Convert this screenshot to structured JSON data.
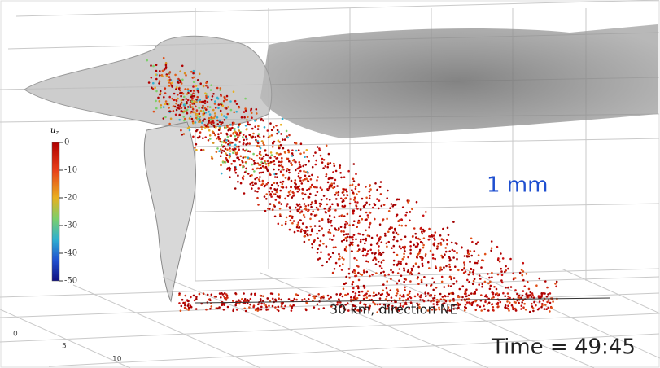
{
  "colorbar": {
    "label": "u",
    "label_subscript": "z",
    "range": [
      -50,
      0
    ],
    "ticks": [
      0,
      -10,
      -20,
      -30,
      -40,
      -50
    ]
  },
  "scale_label": "1 mm",
  "distance_label": "30 km, direction NE",
  "time_label": "Time = 49:45",
  "axis_ticks": [
    "0",
    "5",
    "10"
  ]
}
